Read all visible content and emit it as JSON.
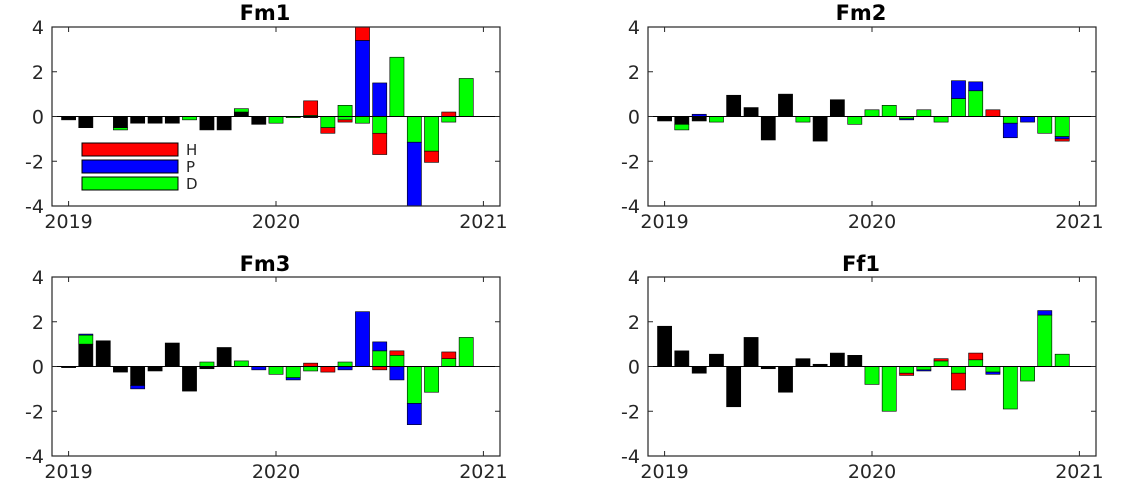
{
  "colors": {
    "H": "#ff0000",
    "P": "#0000ff",
    "D": "#00ff00",
    "other": "#000000"
  },
  "legend": [
    "H",
    "P",
    "D"
  ],
  "chart_data": [
    {
      "type": "bar",
      "title": "Fm1",
      "ylim": [
        -4,
        4
      ],
      "yticks": [
        "-4",
        "-2",
        "0",
        "2",
        "4"
      ],
      "xticks": [
        "2019",
        "2020",
        "2021"
      ],
      "xticks_values": [
        2019.0,
        2020.0,
        2021.0
      ],
      "xlim": [
        2018.92,
        2021.08
      ],
      "grid": false,
      "legend_position": "left",
      "bars": [
        {
          "x": 2019.0,
          "segs": [
            [
              "K",
              -0.15
            ]
          ]
        },
        {
          "x": 2019.083,
          "segs": [
            [
              "K",
              -0.5
            ]
          ]
        },
        {
          "x": 2019.167,
          "segs": []
        },
        {
          "x": 2019.25,
          "segs": [
            [
              "K",
              -0.5
            ],
            [
              "D",
              -0.1
            ]
          ]
        },
        {
          "x": 2019.333,
          "segs": [
            [
              "K",
              -0.3
            ]
          ]
        },
        {
          "x": 2019.417,
          "segs": [
            [
              "K",
              -0.3
            ]
          ]
        },
        {
          "x": 2019.5,
          "segs": [
            [
              "K",
              -0.3
            ]
          ]
        },
        {
          "x": 2019.583,
          "segs": [
            [
              "D",
              -0.15
            ]
          ]
        },
        {
          "x": 2019.667,
          "segs": [
            [
              "K",
              -0.6
            ]
          ]
        },
        {
          "x": 2019.75,
          "segs": [
            [
              "K",
              -0.6
            ]
          ]
        },
        {
          "x": 2019.833,
          "segs": [
            [
              "K",
              0.2
            ],
            [
              "D",
              0.15
            ]
          ]
        },
        {
          "x": 2019.917,
          "segs": [
            [
              "K",
              -0.35
            ]
          ]
        },
        {
          "x": 2020.0,
          "segs": [
            [
              "D",
              -0.3
            ]
          ]
        },
        {
          "x": 2020.083,
          "segs": [
            [
              "D",
              -0.05
            ]
          ]
        },
        {
          "x": 2020.167,
          "segs": [
            [
              "D",
              0.05
            ],
            [
              "H",
              0.65
            ],
            [
              "K",
              -0.05
            ]
          ]
        },
        {
          "x": 2020.25,
          "segs": [
            [
              "D",
              -0.5
            ],
            [
              "H",
              -0.25
            ]
          ]
        },
        {
          "x": 2020.333,
          "segs": [
            [
              "D",
              0.5
            ],
            [
              "D",
              -0.15
            ],
            [
              "H",
              -0.1
            ]
          ]
        },
        {
          "x": 2020.417,
          "segs": [
            [
              "D",
              -0.3
            ],
            [
              "P",
              3.4
            ],
            [
              "H",
              0.6
            ]
          ]
        },
        {
          "x": 2020.5,
          "segs": [
            [
              "P",
              1.5
            ],
            [
              "D",
              -0.75
            ],
            [
              "H",
              -0.95
            ]
          ]
        },
        {
          "x": 2020.583,
          "segs": [
            [
              "D",
              2.65
            ]
          ]
        },
        {
          "x": 2020.667,
          "segs": [
            [
              "D",
              -1.15
            ],
            [
              "P",
              -2.85
            ]
          ]
        },
        {
          "x": 2020.75,
          "segs": [
            [
              "D",
              -1.55
            ],
            [
              "H",
              -0.5
            ]
          ]
        },
        {
          "x": 2020.833,
          "segs": [
            [
              "D",
              -0.25
            ],
            [
              "H",
              0.2
            ]
          ]
        },
        {
          "x": 2020.917,
          "segs": [
            [
              "D",
              1.7
            ]
          ]
        }
      ]
    },
    {
      "type": "bar",
      "title": "Fm2",
      "ylim": [
        -4,
        4
      ],
      "yticks": [
        "-4",
        "-2",
        "0",
        "2",
        "4"
      ],
      "xticks": [
        "2019",
        "2020",
        "2021"
      ],
      "xticks_values": [
        2019.0,
        2020.0,
        2021.0
      ],
      "xlim": [
        2018.92,
        2021.08
      ],
      "grid": false,
      "bars": [
        {
          "x": 2019.0,
          "segs": [
            [
              "K",
              -0.2
            ]
          ]
        },
        {
          "x": 2019.083,
          "segs": [
            [
              "K",
              -0.35
            ],
            [
              "D",
              -0.25
            ]
          ]
        },
        {
          "x": 2019.167,
          "segs": [
            [
              "P",
              0.1
            ],
            [
              "K",
              -0.2
            ]
          ]
        },
        {
          "x": 2019.25,
          "segs": [
            [
              "D",
              -0.25
            ]
          ]
        },
        {
          "x": 2019.333,
          "segs": [
            [
              "K",
              0.95
            ]
          ]
        },
        {
          "x": 2019.417,
          "segs": [
            [
              "K",
              0.4
            ]
          ]
        },
        {
          "x": 2019.5,
          "segs": [
            [
              "K",
              -1.05
            ]
          ]
        },
        {
          "x": 2019.583,
          "segs": [
            [
              "K",
              1.0
            ]
          ]
        },
        {
          "x": 2019.667,
          "segs": [
            [
              "D",
              -0.25
            ]
          ]
        },
        {
          "x": 2019.75,
          "segs": [
            [
              "K",
              -1.1
            ]
          ]
        },
        {
          "x": 2019.833,
          "segs": [
            [
              "K",
              0.75
            ]
          ]
        },
        {
          "x": 2019.917,
          "segs": [
            [
              "D",
              -0.35
            ]
          ]
        },
        {
          "x": 2020.0,
          "segs": [
            [
              "D",
              0.3
            ]
          ]
        },
        {
          "x": 2020.083,
          "segs": [
            [
              "D",
              0.5
            ]
          ]
        },
        {
          "x": 2020.167,
          "segs": [
            [
              "D",
              -0.1
            ],
            [
              "P",
              -0.05
            ]
          ]
        },
        {
          "x": 2020.25,
          "segs": [
            [
              "D",
              0.3
            ]
          ]
        },
        {
          "x": 2020.333,
          "segs": [
            [
              "D",
              -0.25
            ]
          ]
        },
        {
          "x": 2020.417,
          "segs": [
            [
              "D",
              0.8
            ],
            [
              "P",
              0.8
            ]
          ]
        },
        {
          "x": 2020.5,
          "segs": [
            [
              "D",
              1.15
            ],
            [
              "P",
              0.4
            ]
          ]
        },
        {
          "x": 2020.583,
          "segs": [
            [
              "H",
              0.3
            ]
          ]
        },
        {
          "x": 2020.667,
          "segs": [
            [
              "D",
              -0.3
            ],
            [
              "P",
              -0.65
            ]
          ]
        },
        {
          "x": 2020.75,
          "segs": [
            [
              "P",
              -0.25
            ]
          ]
        },
        {
          "x": 2020.833,
          "segs": [
            [
              "D",
              -0.75
            ]
          ]
        },
        {
          "x": 2020.917,
          "segs": [
            [
              "D",
              -0.9
            ],
            [
              "P",
              -0.1
            ],
            [
              "H",
              -0.1
            ]
          ]
        }
      ]
    },
    {
      "type": "bar",
      "title": "Fm3",
      "ylim": [
        -4,
        4
      ],
      "yticks": [
        "-4",
        "-2",
        "0",
        "2",
        "4"
      ],
      "xticks": [
        "2019",
        "2020",
        "2021"
      ],
      "xticks_values": [
        2019.0,
        2020.0,
        2021.0
      ],
      "xlim": [
        2018.92,
        2021.08
      ],
      "grid": false,
      "bars": [
        {
          "x": 2019.0,
          "segs": [
            [
              "K",
              -0.05
            ]
          ]
        },
        {
          "x": 2019.083,
          "segs": [
            [
              "K",
              1.0
            ],
            [
              "D",
              0.4
            ],
            [
              "P",
              0.05
            ]
          ]
        },
        {
          "x": 2019.167,
          "segs": [
            [
              "K",
              1.15
            ]
          ]
        },
        {
          "x": 2019.25,
          "segs": [
            [
              "K",
              -0.25
            ]
          ]
        },
        {
          "x": 2019.333,
          "segs": [
            [
              "K",
              -0.85
            ],
            [
              "P",
              -0.15
            ]
          ]
        },
        {
          "x": 2019.417,
          "segs": [
            [
              "K",
              -0.2
            ]
          ]
        },
        {
          "x": 2019.5,
          "segs": [
            [
              "K",
              1.05
            ]
          ]
        },
        {
          "x": 2019.583,
          "segs": [
            [
              "K",
              -1.1
            ]
          ]
        },
        {
          "x": 2019.667,
          "segs": [
            [
              "D",
              0.2
            ],
            [
              "K",
              -0.1
            ]
          ]
        },
        {
          "x": 2019.75,
          "segs": [
            [
              "K",
              0.85
            ]
          ]
        },
        {
          "x": 2019.833,
          "segs": [
            [
              "D",
              0.25
            ]
          ]
        },
        {
          "x": 2019.917,
          "segs": [
            [
              "P",
              -0.15
            ]
          ]
        },
        {
          "x": 2020.0,
          "segs": [
            [
              "D",
              -0.35
            ]
          ]
        },
        {
          "x": 2020.083,
          "segs": [
            [
              "D",
              -0.5
            ],
            [
              "P",
              -0.1
            ]
          ]
        },
        {
          "x": 2020.167,
          "segs": [
            [
              "D",
              -0.2
            ],
            [
              "H",
              0.15
            ]
          ]
        },
        {
          "x": 2020.25,
          "segs": [
            [
              "H",
              -0.25
            ]
          ]
        },
        {
          "x": 2020.333,
          "segs": [
            [
              "D",
              0.2
            ],
            [
              "P",
              -0.15
            ]
          ]
        },
        {
          "x": 2020.417,
          "segs": [
            [
              "P",
              2.45
            ]
          ]
        },
        {
          "x": 2020.5,
          "segs": [
            [
              "D",
              0.7
            ],
            [
              "P",
              0.4
            ],
            [
              "H",
              -0.15
            ]
          ]
        },
        {
          "x": 2020.583,
          "segs": [
            [
              "D",
              0.5
            ],
            [
              "H",
              0.2
            ],
            [
              "P",
              -0.6
            ]
          ]
        },
        {
          "x": 2020.667,
          "segs": [
            [
              "D",
              -1.65
            ],
            [
              "P",
              -0.95
            ]
          ]
        },
        {
          "x": 2020.75,
          "segs": [
            [
              "D",
              -1.15
            ]
          ]
        },
        {
          "x": 2020.833,
          "segs": [
            [
              "D",
              0.35
            ],
            [
              "H",
              0.3
            ]
          ]
        },
        {
          "x": 2020.917,
          "segs": [
            [
              "D",
              1.3
            ]
          ]
        }
      ]
    },
    {
      "type": "bar",
      "title": "Ff1",
      "ylim": [
        -4,
        4
      ],
      "yticks": [
        "-4",
        "-2",
        "0",
        "2",
        "4"
      ],
      "xticks": [
        "2019",
        "2020",
        "2021"
      ],
      "xticks_values": [
        2019.0,
        2020.0,
        2021.0
      ],
      "xlim": [
        2018.92,
        2021.08
      ],
      "grid": false,
      "bars": [
        {
          "x": 2019.0,
          "segs": [
            [
              "K",
              1.8
            ]
          ]
        },
        {
          "x": 2019.083,
          "segs": [
            [
              "K",
              0.7
            ]
          ]
        },
        {
          "x": 2019.167,
          "segs": [
            [
              "K",
              -0.3
            ]
          ]
        },
        {
          "x": 2019.25,
          "segs": [
            [
              "K",
              0.55
            ]
          ]
        },
        {
          "x": 2019.333,
          "segs": [
            [
              "K",
              -1.8
            ]
          ]
        },
        {
          "x": 2019.417,
          "segs": [
            [
              "K",
              1.3
            ]
          ]
        },
        {
          "x": 2019.5,
          "segs": [
            [
              "K",
              -0.1
            ]
          ]
        },
        {
          "x": 2019.583,
          "segs": [
            [
              "K",
              -1.15
            ]
          ]
        },
        {
          "x": 2019.667,
          "segs": [
            [
              "K",
              0.35
            ]
          ]
        },
        {
          "x": 2019.75,
          "segs": [
            [
              "K",
              0.1
            ]
          ]
        },
        {
          "x": 2019.833,
          "segs": [
            [
              "K",
              0.6
            ]
          ]
        },
        {
          "x": 2019.917,
          "segs": [
            [
              "K",
              0.5
            ]
          ]
        },
        {
          "x": 2020.0,
          "segs": [
            [
              "D",
              -0.8
            ]
          ]
        },
        {
          "x": 2020.083,
          "segs": [
            [
              "D",
              -2.0
            ]
          ]
        },
        {
          "x": 2020.167,
          "segs": [
            [
              "D",
              -0.3
            ],
            [
              "H",
              -0.1
            ]
          ]
        },
        {
          "x": 2020.25,
          "segs": [
            [
              "D",
              -0.15
            ],
            [
              "P",
              -0.05
            ]
          ]
        },
        {
          "x": 2020.333,
          "segs": [
            [
              "D",
              0.25
            ],
            [
              "H",
              0.1
            ]
          ]
        },
        {
          "x": 2020.417,
          "segs": [
            [
              "D",
              -0.3
            ],
            [
              "H",
              -0.75
            ]
          ]
        },
        {
          "x": 2020.5,
          "segs": [
            [
              "D",
              0.3
            ],
            [
              "H",
              0.3
            ]
          ]
        },
        {
          "x": 2020.583,
          "segs": [
            [
              "D",
              -0.25
            ],
            [
              "P",
              -0.1
            ]
          ]
        },
        {
          "x": 2020.667,
          "segs": [
            [
              "D",
              -1.9
            ]
          ]
        },
        {
          "x": 2020.75,
          "segs": [
            [
              "D",
              -0.65
            ]
          ]
        },
        {
          "x": 2020.833,
          "segs": [
            [
              "D",
              2.3
            ],
            [
              "P",
              0.2
            ]
          ]
        },
        {
          "x": 2020.917,
          "segs": [
            [
              "D",
              0.55
            ]
          ]
        }
      ]
    }
  ]
}
